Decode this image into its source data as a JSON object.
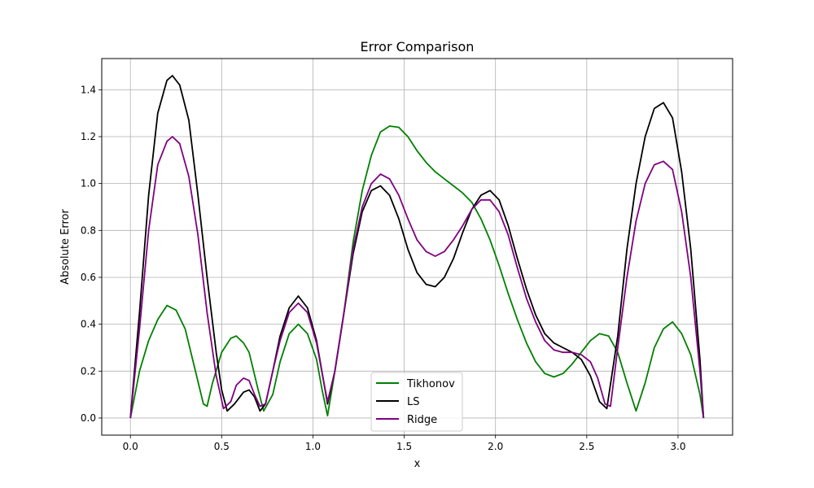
{
  "chart_data": {
    "type": "line",
    "title": "Error Comparison",
    "xlabel": "x",
    "ylabel": "Absolute Error",
    "xlim": [
      -0.157,
      3.299
    ],
    "ylim": [
      -0.073,
      1.533
    ],
    "xticks": [
      "0.0",
      "0.5",
      "1.0",
      "1.5",
      "2.0",
      "2.5",
      "3.0"
    ],
    "yticks": [
      "0.0",
      "0.2",
      "0.4",
      "0.6",
      "0.8",
      "1.0",
      "1.2",
      "1.4"
    ],
    "grid": true,
    "legend_position": "lower-center",
    "series": [
      {
        "name": "Tikhonov",
        "color": "#008000",
        "points": [
          [
            0.0,
            0.0
          ],
          [
            0.05,
            0.2
          ],
          [
            0.1,
            0.33
          ],
          [
            0.15,
            0.42
          ],
          [
            0.2,
            0.48
          ],
          [
            0.25,
            0.46
          ],
          [
            0.3,
            0.38
          ],
          [
            0.35,
            0.22
          ],
          [
            0.4,
            0.06
          ],
          [
            0.42,
            0.05
          ],
          [
            0.45,
            0.15
          ],
          [
            0.5,
            0.28
          ],
          [
            0.55,
            0.34
          ],
          [
            0.58,
            0.35
          ],
          [
            0.62,
            0.32
          ],
          [
            0.65,
            0.28
          ],
          [
            0.7,
            0.12
          ],
          [
            0.73,
            0.03
          ],
          [
            0.78,
            0.1
          ],
          [
            0.82,
            0.24
          ],
          [
            0.87,
            0.36
          ],
          [
            0.92,
            0.4
          ],
          [
            0.97,
            0.36
          ],
          [
            1.02,
            0.25
          ],
          [
            1.05,
            0.12
          ],
          [
            1.08,
            0.01
          ],
          [
            1.12,
            0.2
          ],
          [
            1.17,
            0.45
          ],
          [
            1.22,
            0.75
          ],
          [
            1.27,
            0.97
          ],
          [
            1.32,
            1.12
          ],
          [
            1.37,
            1.22
          ],
          [
            1.42,
            1.245
          ],
          [
            1.47,
            1.24
          ],
          [
            1.52,
            1.2
          ],
          [
            1.57,
            1.14
          ],
          [
            1.62,
            1.09
          ],
          [
            1.67,
            1.05
          ],
          [
            1.72,
            1.02
          ],
          [
            1.77,
            0.99
          ],
          [
            1.82,
            0.96
          ],
          [
            1.87,
            0.92
          ],
          [
            1.92,
            0.85
          ],
          [
            1.97,
            0.76
          ],
          [
            2.02,
            0.65
          ],
          [
            2.07,
            0.53
          ],
          [
            2.12,
            0.42
          ],
          [
            2.17,
            0.32
          ],
          [
            2.22,
            0.24
          ],
          [
            2.27,
            0.19
          ],
          [
            2.32,
            0.175
          ],
          [
            2.37,
            0.19
          ],
          [
            2.42,
            0.23
          ],
          [
            2.47,
            0.28
          ],
          [
            2.52,
            0.33
          ],
          [
            2.57,
            0.36
          ],
          [
            2.62,
            0.35
          ],
          [
            2.67,
            0.28
          ],
          [
            2.72,
            0.15
          ],
          [
            2.77,
            0.03
          ],
          [
            2.82,
            0.15
          ],
          [
            2.87,
            0.3
          ],
          [
            2.92,
            0.38
          ],
          [
            2.97,
            0.41
          ],
          [
            3.02,
            0.36
          ],
          [
            3.07,
            0.27
          ],
          [
            3.12,
            0.1
          ],
          [
            3.14,
            0.0
          ]
        ]
      },
      {
        "name": "LS",
        "color": "#000000",
        "points": [
          [
            0.0,
            0.0
          ],
          [
            0.05,
            0.45
          ],
          [
            0.1,
            0.95
          ],
          [
            0.15,
            1.3
          ],
          [
            0.2,
            1.44
          ],
          [
            0.23,
            1.46
          ],
          [
            0.27,
            1.42
          ],
          [
            0.32,
            1.27
          ],
          [
            0.37,
            0.95
          ],
          [
            0.42,
            0.6
          ],
          [
            0.47,
            0.28
          ],
          [
            0.5,
            0.12
          ],
          [
            0.53,
            0.03
          ],
          [
            0.57,
            0.06
          ],
          [
            0.62,
            0.11
          ],
          [
            0.65,
            0.12
          ],
          [
            0.68,
            0.09
          ],
          [
            0.71,
            0.03
          ],
          [
            0.74,
            0.06
          ],
          [
            0.78,
            0.2
          ],
          [
            0.82,
            0.35
          ],
          [
            0.87,
            0.47
          ],
          [
            0.92,
            0.52
          ],
          [
            0.97,
            0.47
          ],
          [
            1.02,
            0.33
          ],
          [
            1.06,
            0.15
          ],
          [
            1.08,
            0.06
          ],
          [
            1.12,
            0.2
          ],
          [
            1.17,
            0.45
          ],
          [
            1.22,
            0.7
          ],
          [
            1.27,
            0.88
          ],
          [
            1.32,
            0.97
          ],
          [
            1.37,
            0.99
          ],
          [
            1.42,
            0.95
          ],
          [
            1.47,
            0.85
          ],
          [
            1.52,
            0.72
          ],
          [
            1.57,
            0.62
          ],
          [
            1.62,
            0.57
          ],
          [
            1.67,
            0.56
          ],
          [
            1.72,
            0.6
          ],
          [
            1.77,
            0.68
          ],
          [
            1.82,
            0.79
          ],
          [
            1.87,
            0.89
          ],
          [
            1.92,
            0.95
          ],
          [
            1.97,
            0.97
          ],
          [
            2.02,
            0.93
          ],
          [
            2.07,
            0.82
          ],
          [
            2.12,
            0.68
          ],
          [
            2.17,
            0.55
          ],
          [
            2.22,
            0.44
          ],
          [
            2.27,
            0.36
          ],
          [
            2.32,
            0.32
          ],
          [
            2.37,
            0.3
          ],
          [
            2.42,
            0.28
          ],
          [
            2.47,
            0.25
          ],
          [
            2.52,
            0.18
          ],
          [
            2.57,
            0.07
          ],
          [
            2.61,
            0.04
          ],
          [
            2.67,
            0.35
          ],
          [
            2.72,
            0.72
          ],
          [
            2.77,
            1.0
          ],
          [
            2.82,
            1.2
          ],
          [
            2.87,
            1.32
          ],
          [
            2.92,
            1.345
          ],
          [
            2.97,
            1.28
          ],
          [
            3.02,
            1.05
          ],
          [
            3.07,
            0.72
          ],
          [
            3.12,
            0.25
          ],
          [
            3.14,
            0.0
          ]
        ]
      },
      {
        "name": "Ridge",
        "color": "#800080",
        "points": [
          [
            0.0,
            0.0
          ],
          [
            0.05,
            0.38
          ],
          [
            0.1,
            0.8
          ],
          [
            0.15,
            1.08
          ],
          [
            0.2,
            1.18
          ],
          [
            0.23,
            1.2
          ],
          [
            0.27,
            1.17
          ],
          [
            0.32,
            1.03
          ],
          [
            0.37,
            0.78
          ],
          [
            0.42,
            0.45
          ],
          [
            0.47,
            0.18
          ],
          [
            0.51,
            0.04
          ],
          [
            0.55,
            0.07
          ],
          [
            0.58,
            0.14
          ],
          [
            0.62,
            0.17
          ],
          [
            0.65,
            0.16
          ],
          [
            0.68,
            0.1
          ],
          [
            0.71,
            0.05
          ],
          [
            0.74,
            0.06
          ],
          [
            0.78,
            0.2
          ],
          [
            0.82,
            0.33
          ],
          [
            0.87,
            0.45
          ],
          [
            0.92,
            0.49
          ],
          [
            0.97,
            0.45
          ],
          [
            1.02,
            0.32
          ],
          [
            1.06,
            0.15
          ],
          [
            1.08,
            0.07
          ],
          [
            1.12,
            0.2
          ],
          [
            1.17,
            0.45
          ],
          [
            1.22,
            0.72
          ],
          [
            1.27,
            0.9
          ],
          [
            1.32,
            1.0
          ],
          [
            1.37,
            1.04
          ],
          [
            1.42,
            1.02
          ],
          [
            1.47,
            0.95
          ],
          [
            1.52,
            0.85
          ],
          [
            1.57,
            0.76
          ],
          [
            1.62,
            0.71
          ],
          [
            1.67,
            0.69
          ],
          [
            1.72,
            0.71
          ],
          [
            1.77,
            0.76
          ],
          [
            1.82,
            0.82
          ],
          [
            1.87,
            0.89
          ],
          [
            1.92,
            0.93
          ],
          [
            1.97,
            0.93
          ],
          [
            2.02,
            0.88
          ],
          [
            2.07,
            0.78
          ],
          [
            2.12,
            0.64
          ],
          [
            2.17,
            0.51
          ],
          [
            2.22,
            0.41
          ],
          [
            2.27,
            0.33
          ],
          [
            2.32,
            0.29
          ],
          [
            2.37,
            0.28
          ],
          [
            2.42,
            0.28
          ],
          [
            2.47,
            0.27
          ],
          [
            2.52,
            0.24
          ],
          [
            2.56,
            0.17
          ],
          [
            2.6,
            0.06
          ],
          [
            2.63,
            0.05
          ],
          [
            2.67,
            0.3
          ],
          [
            2.72,
            0.6
          ],
          [
            2.77,
            0.84
          ],
          [
            2.82,
            1.0
          ],
          [
            2.87,
            1.08
          ],
          [
            2.92,
            1.095
          ],
          [
            2.97,
            1.06
          ],
          [
            3.02,
            0.88
          ],
          [
            3.07,
            0.6
          ],
          [
            3.12,
            0.2
          ],
          [
            3.14,
            0.0
          ]
        ]
      }
    ]
  }
}
